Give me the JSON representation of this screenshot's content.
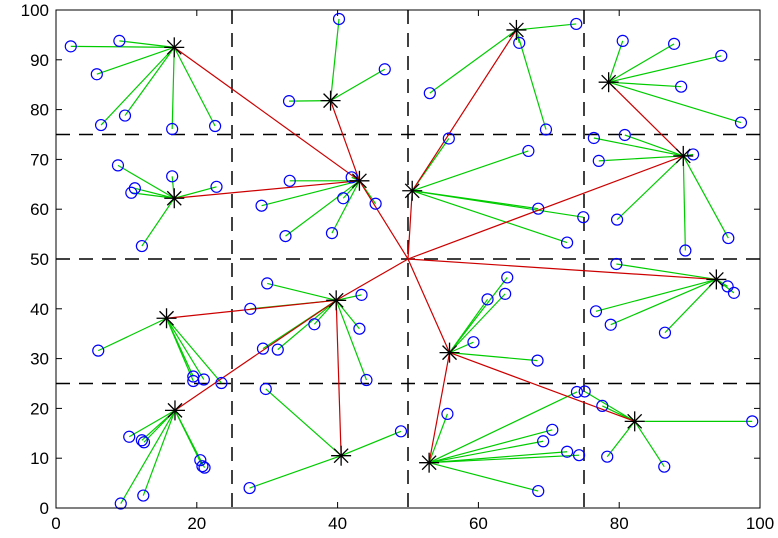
{
  "chart_data": {
    "type": "scatter",
    "title": "",
    "xlabel": "",
    "ylabel": "",
    "xlim": [
      0,
      100
    ],
    "ylim": [
      0,
      100
    ],
    "xticks": [
      0,
      20,
      40,
      60,
      80,
      100
    ],
    "yticks": [
      0,
      10,
      20,
      30,
      40,
      50,
      60,
      70,
      80,
      90,
      100
    ],
    "grid": false,
    "grid_lines": {
      "x": [
        25,
        50,
        75
      ],
      "y": [
        25,
        50,
        75
      ]
    },
    "colors": {
      "nodes": "#0000ff",
      "heads": "#000000",
      "member_links": "#00cc00",
      "head_links": "#cc0000",
      "grid": "#000000"
    },
    "sink": {
      "id": "S",
      "x": 50,
      "y": 50
    },
    "cluster_heads": [
      {
        "id": "C1",
        "x": 16.8,
        "y": 92.5,
        "parent": "C5"
      },
      {
        "id": "C2",
        "x": 39.0,
        "y": 81.8,
        "parent": "C5"
      },
      {
        "id": "C3",
        "x": 65.4,
        "y": 96.0,
        "parent": "C7"
      },
      {
        "id": "C4",
        "x": 78.5,
        "y": 85.5,
        "parent": "C8"
      },
      {
        "id": "C5",
        "x": 43.1,
        "y": 65.7,
        "parent": "S"
      },
      {
        "id": "C6",
        "x": 16.8,
        "y": 62.2,
        "parent": "C5"
      },
      {
        "id": "C7",
        "x": 50.6,
        "y": 63.7,
        "parent": "S"
      },
      {
        "id": "C8",
        "x": 89.1,
        "y": 70.7,
        "parent": "S"
      },
      {
        "id": "C9",
        "x": 15.7,
        "y": 38.1,
        "parent": "C10"
      },
      {
        "id": "C10",
        "x": 39.8,
        "y": 41.7,
        "parent": "S"
      },
      {
        "id": "C11",
        "x": 55.9,
        "y": 31.2,
        "parent": "S"
      },
      {
        "id": "C12",
        "x": 93.8,
        "y": 45.9,
        "parent": "S"
      },
      {
        "id": "C13",
        "x": 16.9,
        "y": 19.6,
        "parent": "C10"
      },
      {
        "id": "C14",
        "x": 40.5,
        "y": 10.5,
        "parent": "C10"
      },
      {
        "id": "C15",
        "x": 53.0,
        "y": 9.1,
        "parent": "C11"
      },
      {
        "id": "C16",
        "x": 82.2,
        "y": 17.4,
        "parent": "C11"
      }
    ],
    "nodes": [
      {
        "x": 2.1,
        "y": 92.7,
        "head": "C1"
      },
      {
        "x": 9.0,
        "y": 93.8,
        "head": "C1"
      },
      {
        "x": 5.8,
        "y": 87.1,
        "head": "C1"
      },
      {
        "x": 9.8,
        "y": 78.8,
        "head": "C1"
      },
      {
        "x": 6.4,
        "y": 76.9,
        "head": "C1"
      },
      {
        "x": 16.5,
        "y": 76.1,
        "head": "C1"
      },
      {
        "x": 22.6,
        "y": 76.7,
        "head": "C1"
      },
      {
        "x": 40.2,
        "y": 98.2,
        "head": "C2"
      },
      {
        "x": 46.7,
        "y": 88.1,
        "head": "C2"
      },
      {
        "x": 33.1,
        "y": 81.7,
        "head": "C2"
      },
      {
        "x": 73.9,
        "y": 97.2,
        "head": "C3"
      },
      {
        "x": 65.8,
        "y": 93.4,
        "head": "C3"
      },
      {
        "x": 53.1,
        "y": 83.3,
        "head": "C3"
      },
      {
        "x": 69.6,
        "y": 76.0,
        "head": "C3"
      },
      {
        "x": 80.5,
        "y": 93.8,
        "head": "C4"
      },
      {
        "x": 87.8,
        "y": 93.2,
        "head": "C4"
      },
      {
        "x": 94.5,
        "y": 90.8,
        "head": "C4"
      },
      {
        "x": 88.8,
        "y": 84.6,
        "head": "C4"
      },
      {
        "x": 97.3,
        "y": 77.4,
        "head": "C4"
      },
      {
        "x": 33.2,
        "y": 65.7,
        "head": "C5"
      },
      {
        "x": 42.0,
        "y": 66.4,
        "head": "C5"
      },
      {
        "x": 40.8,
        "y": 62.2,
        "head": "C5"
      },
      {
        "x": 45.4,
        "y": 61.1,
        "head": "C5"
      },
      {
        "x": 29.2,
        "y": 60.7,
        "head": "C5"
      },
      {
        "x": 39.2,
        "y": 55.2,
        "head": "C5"
      },
      {
        "x": 32.6,
        "y": 54.6,
        "head": "C5"
      },
      {
        "x": 8.8,
        "y": 68.8,
        "head": "C6"
      },
      {
        "x": 16.5,
        "y": 66.6,
        "head": "C6"
      },
      {
        "x": 22.8,
        "y": 64.5,
        "head": "C6"
      },
      {
        "x": 11.2,
        "y": 64.2,
        "head": "C6"
      },
      {
        "x": 10.7,
        "y": 63.3,
        "head": "C6"
      },
      {
        "x": 12.2,
        "y": 52.6,
        "head": "C6"
      },
      {
        "x": 55.8,
        "y": 74.2,
        "head": "C7"
      },
      {
        "x": 67.1,
        "y": 71.7,
        "head": "C7"
      },
      {
        "x": 68.5,
        "y": 60.1,
        "head": "C7"
      },
      {
        "x": 74.9,
        "y": 58.4,
        "head": "C7"
      },
      {
        "x": 72.6,
        "y": 53.3,
        "head": "C7"
      },
      {
        "x": 76.4,
        "y": 74.3,
        "head": "C8"
      },
      {
        "x": 80.8,
        "y": 74.9,
        "head": "C8"
      },
      {
        "x": 77.1,
        "y": 69.7,
        "head": "C8"
      },
      {
        "x": 90.5,
        "y": 71.0,
        "head": "C8"
      },
      {
        "x": 79.7,
        "y": 57.9,
        "head": "C8"
      },
      {
        "x": 89.4,
        "y": 51.7,
        "head": "C8"
      },
      {
        "x": 95.5,
        "y": 54.2,
        "head": "C8"
      },
      {
        "x": 21.0,
        "y": 25.8,
        "head": "C9"
      },
      {
        "x": 6.0,
        "y": 31.6,
        "head": "C9"
      },
      {
        "x": 19.5,
        "y": 25.5,
        "head": "C9"
      },
      {
        "x": 23.5,
        "y": 25.1,
        "head": "C9"
      },
      {
        "x": 19.5,
        "y": 26.4,
        "head": "C9"
      },
      {
        "x": 30.0,
        "y": 45.1,
        "head": "C10"
      },
      {
        "x": 27.6,
        "y": 40.0,
        "head": "C10"
      },
      {
        "x": 43.4,
        "y": 42.8,
        "head": "C10"
      },
      {
        "x": 36.7,
        "y": 36.9,
        "head": "C10"
      },
      {
        "x": 43.1,
        "y": 36.0,
        "head": "C10"
      },
      {
        "x": 29.4,
        "y": 32.0,
        "head": "C10"
      },
      {
        "x": 31.5,
        "y": 31.8,
        "head": "C10"
      },
      {
        "x": 44.1,
        "y": 25.7,
        "head": "C10"
      },
      {
        "x": 64.1,
        "y": 46.3,
        "head": "C11"
      },
      {
        "x": 61.3,
        "y": 41.9,
        "head": "C11"
      },
      {
        "x": 63.8,
        "y": 43.0,
        "head": "C11"
      },
      {
        "x": 59.3,
        "y": 33.3,
        "head": "C11"
      },
      {
        "x": 68.4,
        "y": 29.6,
        "head": "C11"
      },
      {
        "x": 79.6,
        "y": 49.0,
        "head": "C12"
      },
      {
        "x": 76.7,
        "y": 39.5,
        "head": "C12"
      },
      {
        "x": 78.8,
        "y": 36.8,
        "head": "C12"
      },
      {
        "x": 86.5,
        "y": 35.2,
        "head": "C12"
      },
      {
        "x": 95.4,
        "y": 44.5,
        "head": "C12"
      },
      {
        "x": 96.3,
        "y": 43.2,
        "head": "C12"
      },
      {
        "x": 10.4,
        "y": 14.3,
        "head": "C13"
      },
      {
        "x": 12.2,
        "y": 13.6,
        "head": "C13"
      },
      {
        "x": 12.5,
        "y": 13.2,
        "head": "C13"
      },
      {
        "x": 20.5,
        "y": 9.6,
        "head": "C13"
      },
      {
        "x": 20.8,
        "y": 8.4,
        "head": "C13"
      },
      {
        "x": 21.1,
        "y": 8.1,
        "head": "C13"
      },
      {
        "x": 12.4,
        "y": 2.5,
        "head": "C13"
      },
      {
        "x": 9.2,
        "y": 0.9,
        "head": "C13"
      },
      {
        "x": 29.8,
        "y": 23.9,
        "head": "C14"
      },
      {
        "x": 49.0,
        "y": 15.4,
        "head": "C14"
      },
      {
        "x": 27.5,
        "y": 4.0,
        "head": "C14"
      },
      {
        "x": 55.6,
        "y": 18.9,
        "head": "C15"
      },
      {
        "x": 74.0,
        "y": 23.3,
        "head": "C15"
      },
      {
        "x": 70.5,
        "y": 15.7,
        "head": "C15"
      },
      {
        "x": 69.2,
        "y": 13.4,
        "head": "C15"
      },
      {
        "x": 72.6,
        "y": 11.3,
        "head": "C15"
      },
      {
        "x": 74.3,
        "y": 10.6,
        "head": "C15"
      },
      {
        "x": 68.5,
        "y": 3.4,
        "head": "C15"
      },
      {
        "x": 75.1,
        "y": 23.4,
        "head": "C16"
      },
      {
        "x": 77.6,
        "y": 20.5,
        "head": "C16"
      },
      {
        "x": 98.9,
        "y": 17.4,
        "head": "C16"
      },
      {
        "x": 78.3,
        "y": 10.3,
        "head": "C16"
      },
      {
        "x": 86.4,
        "y": 8.3,
        "head": "C16"
      }
    ]
  }
}
